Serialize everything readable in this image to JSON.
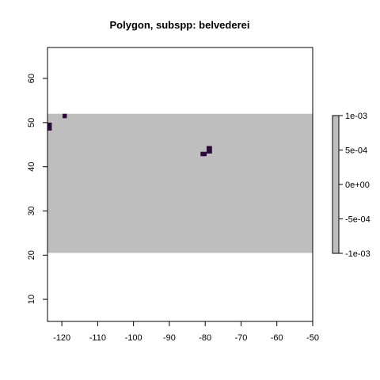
{
  "chart_data": {
    "type": "heatmap",
    "title": "Polygon, subspp: belvederei",
    "xlabel": "",
    "ylabel": "",
    "xlim": [
      -124,
      -50
    ],
    "ylim": [
      5,
      67
    ],
    "x_ticks": [
      -120,
      -110,
      -100,
      -90,
      -80,
      -70,
      -60,
      -50
    ],
    "y_ticks": [
      10,
      20,
      30,
      40,
      50,
      60
    ],
    "grid": false,
    "background_raster": {
      "x_range": [
        -124,
        -50
      ],
      "y_range": [
        20.5,
        52
      ],
      "value": 0,
      "color": "#bebebe"
    },
    "cells": [
      {
        "x0": -124,
        "x1": -122.8,
        "y0": 48.2,
        "y1": 50.0,
        "value": 0.001
      },
      {
        "x0": -119.8,
        "x1": -118.6,
        "y0": 51.0,
        "y1": 52.0,
        "value": 0.001
      },
      {
        "x0": -81.3,
        "x1": -79.6,
        "y0": 42.4,
        "y1": 43.4,
        "value": 0.001
      },
      {
        "x0": -79.6,
        "x1": -78.1,
        "y0": 43.0,
        "y1": 44.7,
        "value": 0.001
      }
    ],
    "cell_color": "#2d0a3a",
    "legend": {
      "placement": "right",
      "range": [
        -0.001,
        0.001
      ],
      "fill_color": "#bebebe",
      "tick_values": [
        -0.001,
        -0.0005,
        0,
        0.0005,
        0.001
      ],
      "tick_labels": [
        "-1e-03",
        "-5e-04",
        "0e+00",
        "5e-04",
        "1e-03"
      ]
    }
  }
}
